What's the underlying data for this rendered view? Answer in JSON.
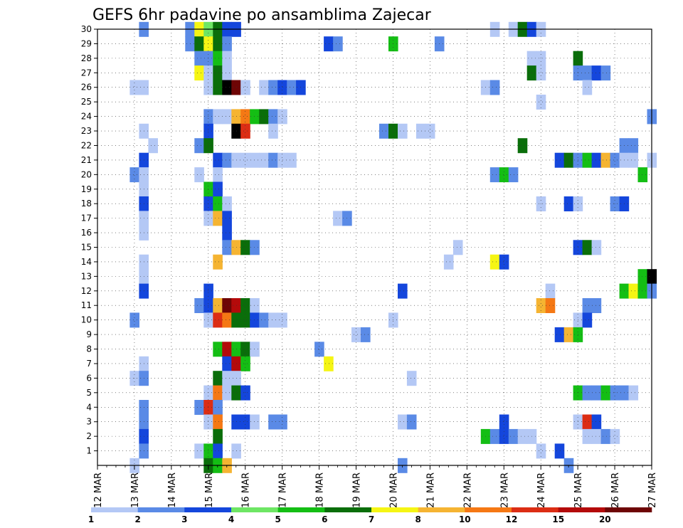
{
  "chart_data": {
    "type": "heatmap",
    "title": "GEFS 6hr padavine po ansamblima Zajecar",
    "xlabel": "",
    "ylabel": "",
    "x_ticks": [
      "12 MAR",
      "13 MAR",
      "14 MAR",
      "15 MAR",
      "16 MAR",
      "17 MAR",
      "18 MAR",
      "19 MAR",
      "20 MAR",
      "21 MAR",
      "22 MAR",
      "23 MAR",
      "24 MAR",
      "25 MAR",
      "26 MAR",
      "27 MAR"
    ],
    "y_ticks": [
      "1",
      "2",
      "3",
      "4",
      "5",
      "6",
      "7",
      "8",
      "9",
      "10",
      "11",
      "12",
      "13",
      "14",
      "15",
      "16",
      "17",
      "18",
      "19",
      "20",
      "21",
      "22",
      "23",
      "24",
      "25",
      "26",
      "27",
      "28",
      "29",
      "30"
    ],
    "xlim": [
      "12 MAR",
      "27 MAR"
    ],
    "ylim": [
      0,
      30
    ],
    "time_step_hours": 6,
    "grid": true,
    "legend": {
      "placement": "bottom",
      "labels": [
        "1",
        "2",
        "3",
        "4",
        "5",
        "6",
        "7",
        "8",
        "10",
        "12",
        "15",
        "20"
      ],
      "colors": [
        "#b4c8f5",
        "#5a8ae6",
        "#1446dc",
        "#6ee664",
        "#14be14",
        "#0a6e0a",
        "#f5f514",
        "#f5b432",
        "#f57814",
        "#dc2d14",
        "#b40a0a",
        "#6e0505"
      ]
    },
    "cells": [
      [
        30,
        13.25,
        2
      ],
      [
        30,
        14.5,
        2
      ],
      [
        30,
        14.75,
        7
      ],
      [
        30,
        15.0,
        4
      ],
      [
        30,
        15.25,
        6
      ],
      [
        30,
        15.5,
        3
      ],
      [
        30,
        15.75,
        3
      ],
      [
        30,
        22.75,
        1
      ],
      [
        30,
        23.25,
        1
      ],
      [
        30,
        23.5,
        6
      ],
      [
        30,
        23.75,
        3
      ],
      [
        30,
        24.0,
        1
      ],
      [
        29,
        14.5,
        2
      ],
      [
        29,
        14.75,
        6
      ],
      [
        29,
        15.0,
        7
      ],
      [
        29,
        15.25,
        6
      ],
      [
        29,
        15.5,
        2
      ],
      [
        29,
        18.25,
        3
      ],
      [
        29,
        18.5,
        2
      ],
      [
        29,
        20.0,
        5
      ],
      [
        29,
        21.25,
        2
      ],
      [
        28,
        14.75,
        2
      ],
      [
        28,
        15.0,
        2
      ],
      [
        28,
        15.25,
        5
      ],
      [
        28,
        15.5,
        1
      ],
      [
        28,
        23.75,
        1
      ],
      [
        28,
        24.0,
        1
      ],
      [
        28,
        25.0,
        6
      ],
      [
        27,
        14.75,
        7
      ],
      [
        27,
        15.0,
        1
      ],
      [
        27,
        15.25,
        6
      ],
      [
        27,
        15.5,
        1
      ],
      [
        27,
        23.75,
        6
      ],
      [
        27,
        24.0,
        1
      ],
      [
        27,
        25.0,
        2
      ],
      [
        27,
        25.25,
        2
      ],
      [
        27,
        25.5,
        3
      ],
      [
        27,
        25.75,
        2
      ],
      [
        26,
        13.0,
        1
      ],
      [
        26,
        13.25,
        1
      ],
      [
        26,
        15.0,
        1
      ],
      [
        26,
        15.25,
        6
      ],
      [
        26,
        15.5,
        13
      ],
      [
        26,
        15.75,
        12
      ],
      [
        26,
        16.0,
        1
      ],
      [
        26,
        16.5,
        1
      ],
      [
        26,
        16.75,
        2
      ],
      [
        26,
        17.0,
        3
      ],
      [
        26,
        17.25,
        2
      ],
      [
        26,
        17.5,
        3
      ],
      [
        26,
        22.5,
        1
      ],
      [
        26,
        22.75,
        2
      ],
      [
        26,
        25.25,
        1
      ],
      [
        25,
        24.0,
        1
      ],
      [
        24,
        15.0,
        2
      ],
      [
        24,
        15.25,
        1
      ],
      [
        24,
        15.5,
        1
      ],
      [
        24,
        15.75,
        8
      ],
      [
        24,
        16.0,
        9
      ],
      [
        24,
        16.25,
        5
      ],
      [
        24,
        16.5,
        6
      ],
      [
        24,
        16.75,
        2
      ],
      [
        24,
        17.0,
        1
      ],
      [
        24,
        27.0,
        2
      ],
      [
        23,
        13.25,
        1
      ],
      [
        23,
        15.0,
        3
      ],
      [
        23,
        15.75,
        13
      ],
      [
        23,
        16.0,
        10
      ],
      [
        23,
        16.75,
        1
      ],
      [
        23,
        19.75,
        2
      ],
      [
        23,
        20.0,
        6
      ],
      [
        23,
        20.25,
        1
      ],
      [
        23,
        20.75,
        1
      ],
      [
        23,
        21.0,
        1
      ],
      [
        22,
        13.5,
        1
      ],
      [
        22,
        14.75,
        2
      ],
      [
        22,
        15.0,
        6
      ],
      [
        22,
        23.5,
        6
      ],
      [
        22,
        26.25,
        2
      ],
      [
        22,
        26.5,
        2
      ],
      [
        21,
        13.25,
        3
      ],
      [
        21,
        15.25,
        3
      ],
      [
        21,
        15.5,
        2
      ],
      [
        21,
        15.75,
        1
      ],
      [
        21,
        16.0,
        1
      ],
      [
        21,
        16.25,
        1
      ],
      [
        21,
        16.5,
        1
      ],
      [
        21,
        16.75,
        2
      ],
      [
        21,
        17.0,
        1
      ],
      [
        21,
        17.25,
        1
      ],
      [
        21,
        24.5,
        3
      ],
      [
        21,
        24.75,
        6
      ],
      [
        21,
        25.0,
        2
      ],
      [
        21,
        25.25,
        5
      ],
      [
        21,
        25.5,
        3
      ],
      [
        21,
        25.75,
        8
      ],
      [
        21,
        26.0,
        2
      ],
      [
        21,
        26.25,
        1
      ],
      [
        21,
        26.5,
        1
      ],
      [
        21,
        27.0,
        1
      ],
      [
        20,
        13.0,
        2
      ],
      [
        20,
        13.25,
        1
      ],
      [
        20,
        14.75,
        1
      ],
      [
        20,
        15.25,
        1
      ],
      [
        20,
        22.75,
        2
      ],
      [
        20,
        23.0,
        5
      ],
      [
        20,
        23.25,
        2
      ],
      [
        20,
        26.75,
        5
      ],
      [
        19,
        13.25,
        1
      ],
      [
        19,
        15.0,
        5
      ],
      [
        19,
        15.25,
        3
      ],
      [
        18,
        13.25,
        3
      ],
      [
        18,
        15.0,
        3
      ],
      [
        18,
        15.25,
        5
      ],
      [
        18,
        15.5,
        1
      ],
      [
        18,
        24.0,
        1
      ],
      [
        18,
        24.75,
        3
      ],
      [
        18,
        25.0,
        1
      ],
      [
        18,
        26.0,
        2
      ],
      [
        18,
        26.25,
        3
      ],
      [
        17,
        13.25,
        1
      ],
      [
        17,
        15.0,
        1
      ],
      [
        17,
        15.25,
        8
      ],
      [
        17,
        15.5,
        3
      ],
      [
        17,
        18.5,
        1
      ],
      [
        17,
        18.75,
        2
      ],
      [
        16,
        13.25,
        1
      ],
      [
        16,
        15.5,
        3
      ],
      [
        15,
        15.5,
        2
      ],
      [
        15,
        15.75,
        8
      ],
      [
        15,
        16.0,
        6
      ],
      [
        15,
        16.25,
        2
      ],
      [
        15,
        21.75,
        1
      ],
      [
        15,
        25.0,
        3
      ],
      [
        15,
        25.25,
        6
      ],
      [
        15,
        25.5,
        1
      ],
      [
        14,
        13.25,
        1
      ],
      [
        14,
        15.25,
        8
      ],
      [
        14,
        21.5,
        1
      ],
      [
        14,
        22.75,
        7
      ],
      [
        14,
        23.0,
        3
      ],
      [
        13,
        13.25,
        1
      ],
      [
        13,
        26.75,
        5
      ],
      [
        13,
        27.0,
        13
      ],
      [
        12,
        13.25,
        3
      ],
      [
        12,
        15.0,
        3
      ],
      [
        12,
        20.25,
        3
      ],
      [
        12,
        24.25,
        1
      ],
      [
        12,
        26.25,
        5
      ],
      [
        12,
        26.5,
        7
      ],
      [
        12,
        26.75,
        5
      ],
      [
        12,
        27.0,
        2
      ],
      [
        11,
        14.75,
        2
      ],
      [
        11,
        15.0,
        3
      ],
      [
        11,
        15.25,
        8
      ],
      [
        11,
        15.5,
        12
      ],
      [
        11,
        15.75,
        11
      ],
      [
        11,
        16.0,
        6
      ],
      [
        11,
        16.25,
        1
      ],
      [
        11,
        24.0,
        8
      ],
      [
        11,
        24.25,
        9
      ],
      [
        11,
        25.25,
        2
      ],
      [
        11,
        25.5,
        2
      ],
      [
        10,
        13.0,
        2
      ],
      [
        10,
        15.0,
        1
      ],
      [
        10,
        15.25,
        10
      ],
      [
        10,
        15.5,
        9
      ],
      [
        10,
        15.75,
        6
      ],
      [
        10,
        16.0,
        6
      ],
      [
        10,
        16.25,
        3
      ],
      [
        10,
        16.5,
        2
      ],
      [
        10,
        16.75,
        1
      ],
      [
        10,
        17.0,
        1
      ],
      [
        10,
        20.0,
        1
      ],
      [
        10,
        25.0,
        1
      ],
      [
        10,
        25.25,
        3
      ],
      [
        9,
        19.0,
        1
      ],
      [
        9,
        19.25,
        2
      ],
      [
        9,
        24.5,
        3
      ],
      [
        9,
        24.75,
        8
      ],
      [
        9,
        25.0,
        5
      ],
      [
        8,
        15.25,
        5
      ],
      [
        8,
        15.5,
        11
      ],
      [
        8,
        15.75,
        5
      ],
      [
        8,
        16.0,
        6
      ],
      [
        8,
        16.25,
        1
      ],
      [
        8,
        18.0,
        2
      ],
      [
        7,
        13.25,
        1
      ],
      [
        7,
        15.5,
        3
      ],
      [
        7,
        15.75,
        11
      ],
      [
        7,
        16.0,
        5
      ],
      [
        7,
        18.25,
        7
      ],
      [
        6,
        13.0,
        1
      ],
      [
        6,
        13.25,
        2
      ],
      [
        6,
        15.25,
        6
      ],
      [
        6,
        15.5,
        1
      ],
      [
        6,
        15.75,
        1
      ],
      [
        6,
        20.5,
        1
      ],
      [
        5,
        15.0,
        1
      ],
      [
        5,
        15.25,
        9
      ],
      [
        5,
        15.5,
        1
      ],
      [
        5,
        15.75,
        6
      ],
      [
        5,
        16.0,
        3
      ],
      [
        5,
        25.0,
        5
      ],
      [
        5,
        25.25,
        2
      ],
      [
        5,
        25.5,
        2
      ],
      [
        5,
        25.75,
        5
      ],
      [
        5,
        26.0,
        2
      ],
      [
        5,
        26.25,
        2
      ],
      [
        5,
        26.5,
        1
      ],
      [
        4,
        13.25,
        2
      ],
      [
        4,
        14.75,
        2
      ],
      [
        4,
        15.0,
        10
      ],
      [
        4,
        15.25,
        2
      ],
      [
        3,
        13.25,
        2
      ],
      [
        3,
        15.0,
        1
      ],
      [
        3,
        15.25,
        9
      ],
      [
        3,
        15.75,
        3
      ],
      [
        3,
        16.0,
        3
      ],
      [
        3,
        16.25,
        1
      ],
      [
        3,
        16.75,
        2
      ],
      [
        3,
        17.0,
        2
      ],
      [
        3,
        20.25,
        1
      ],
      [
        3,
        20.5,
        2
      ],
      [
        3,
        23.0,
        3
      ],
      [
        3,
        25.0,
        1
      ],
      [
        3,
        25.25,
        10
      ],
      [
        3,
        25.5,
        3
      ],
      [
        2,
        13.25,
        3
      ],
      [
        2,
        15.25,
        6
      ],
      [
        2,
        22.5,
        5
      ],
      [
        2,
        22.75,
        2
      ],
      [
        2,
        23.0,
        3
      ],
      [
        2,
        23.25,
        2
      ],
      [
        2,
        23.5,
        1
      ],
      [
        2,
        23.75,
        1
      ],
      [
        2,
        25.25,
        1
      ],
      [
        2,
        25.5,
        1
      ],
      [
        2,
        25.75,
        2
      ],
      [
        2,
        26.0,
        1
      ],
      [
        1,
        13.25,
        2
      ],
      [
        1,
        14.75,
        1
      ],
      [
        1,
        15.0,
        5
      ],
      [
        1,
        15.25,
        3
      ],
      [
        1,
        15.75,
        1
      ],
      [
        1,
        24.0,
        1
      ],
      [
        1,
        24.5,
        3
      ],
      [
        0,
        13.0,
        1
      ],
      [
        0,
        15.0,
        6
      ],
      [
        0,
        15.25,
        5
      ],
      [
        0,
        15.5,
        8
      ],
      [
        0,
        20.25,
        2
      ],
      [
        0,
        24.75,
        2
      ]
    ]
  }
}
